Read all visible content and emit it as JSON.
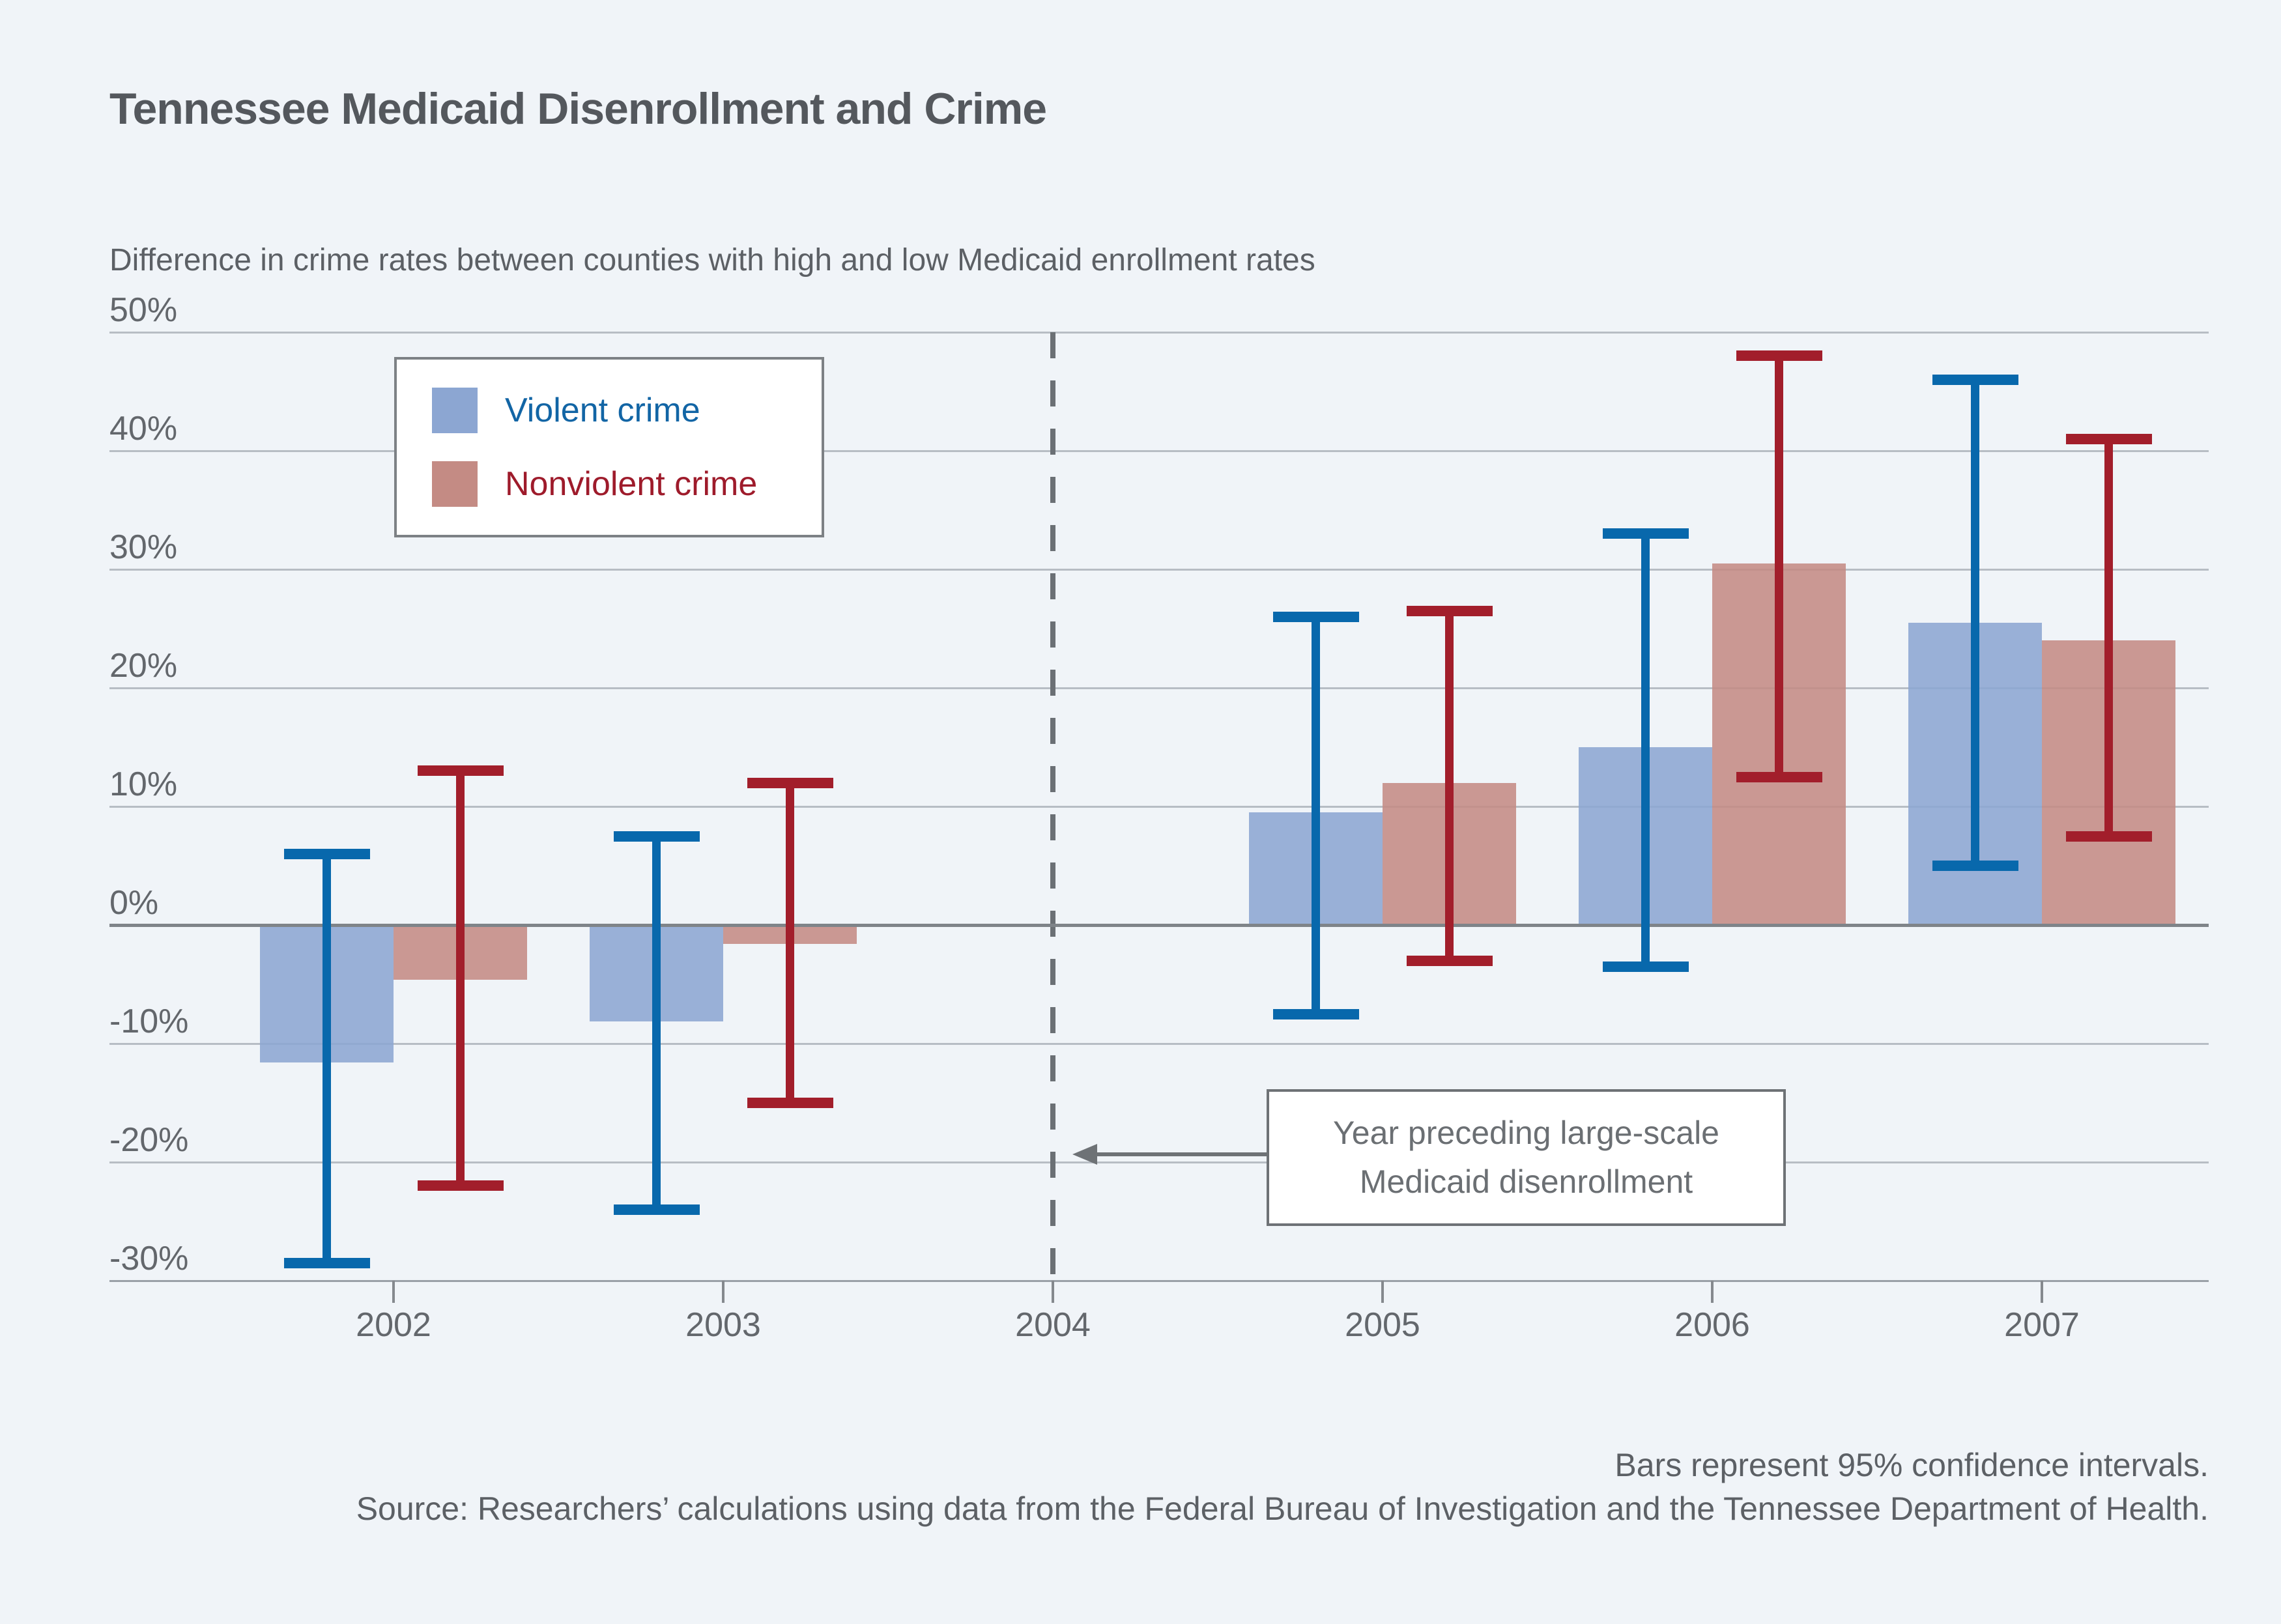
{
  "header": {
    "title": "Tennessee Medicaid Disenrollment and Crime",
    "subtitle": "Difference in crime rates between counties with high and low Medicaid enrollment rates"
  },
  "legend": {
    "items": [
      {
        "label": "Violent crime",
        "swatch_color": "#8ca6d2",
        "text_color": "#1265a5"
      },
      {
        "label": "Nonviolent crime",
        "swatch_color": "#c48b84",
        "text_color": "#9e1b2b"
      }
    ]
  },
  "annotation": {
    "line1": "Year preceding large-scale",
    "line2": "Medicaid disenrollment"
  },
  "footer": {
    "ci_note": "Bars represent 95% confidence intervals.",
    "source": "Source: Researchers’ calculations using data from the Federal Bureau of Investigation and the Tennessee Department of Health."
  },
  "colors": {
    "background": "#f0f4f8",
    "violent_bar": "#8ca6d2",
    "violent_ci": "#0868ac",
    "nonviolent_bar": "#c48b84",
    "nonviolent_ci": "#a21e2b",
    "gridline": "#b7bdc4",
    "zero_line": "#7f8489",
    "text_dark": "#54585d",
    "text_gray": "#63676c"
  },
  "chart_data": {
    "type": "bar",
    "title": "Tennessee Medicaid Disenrollment and Crime",
    "subtitle": "Difference in crime rates between counties with high and low Medicaid enrollment rates",
    "categories": [
      "2002",
      "2003",
      "2004",
      "2005",
      "2006",
      "2007"
    ],
    "series": [
      {
        "name": "Violent crime",
        "values": [
          -11.5,
          -8,
          null,
          9.5,
          15,
          25.5
        ],
        "ci_low": [
          -28.5,
          -24,
          null,
          -7.5,
          -3.5,
          5
        ],
        "ci_high": [
          6,
          7.5,
          null,
          26,
          33,
          46
        ]
      },
      {
        "name": "Nonviolent crime",
        "values": [
          -4.5,
          -1.5,
          null,
          12,
          30.5,
          24
        ],
        "ci_low": [
          -22,
          -15,
          null,
          -3,
          12.5,
          7.5
        ],
        "ci_high": [
          13,
          12,
          null,
          26.5,
          48,
          41
        ]
      }
    ],
    "y_ticks": [
      50,
      40,
      30,
      20,
      10,
      0,
      -10,
      -20,
      -30
    ],
    "y_tick_labels": [
      "50%",
      "40%",
      "30%",
      "20%",
      "10%",
      "0%",
      "-10%",
      "-20%",
      "-30%"
    ],
    "ylim": [
      -30,
      50
    ],
    "unit": "%",
    "grid": true,
    "legend_position": "top-left-inside",
    "dashed_line_category": "2004",
    "error_bars": "95% confidence intervals"
  }
}
